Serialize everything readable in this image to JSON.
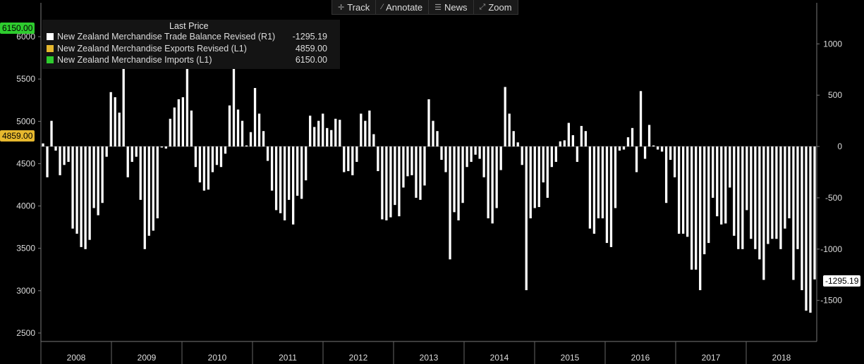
{
  "toolbar": {
    "track_label": "Track",
    "annotate_label": "Annotate",
    "news_label": "News",
    "zoom_label": "Zoom"
  },
  "legend": {
    "header": "Last Price",
    "items": [
      {
        "label": "New Zealand Merchandise Trade Balance Revised  (R1)",
        "value": "-1295.19",
        "color": "#ffffff"
      },
      {
        "label": "New Zealand Merchandise Exports Revised  (L1)",
        "value": "4859.00",
        "color": "#e6b82e"
      },
      {
        "label": "New Zealand Merchandise Imports  (L1)",
        "value": "6150.00",
        "color": "#2ecc2e"
      }
    ]
  },
  "tags": {
    "imports_last": "6150.00",
    "exports_last": "4859.00",
    "balance_last": "-1295.19"
  },
  "chart_data": {
    "type": "bar",
    "x_start": "2008-01",
    "x_end": "2018-12",
    "x_tick_labels": [
      "2008",
      "2009",
      "2010",
      "2011",
      "2012",
      "2013",
      "2014",
      "2015",
      "2016",
      "2017",
      "2018"
    ],
    "left_axis": {
      "ticks": [
        2500,
        3000,
        3500,
        4000,
        4500,
        5000,
        5500,
        6000
      ],
      "range": [
        2400,
        6400
      ]
    },
    "right_axis": {
      "ticks": [
        -1500,
        -1000,
        -500,
        0,
        500,
        1000
      ],
      "range": [
        -1900,
        1400
      ]
    },
    "series": [
      {
        "name": "New Zealand Merchandise Trade Balance Revised  (R1)",
        "type": "bar",
        "axis": "right",
        "values": [
          30,
          -300,
          250,
          -40,
          -280,
          -180,
          -150,
          -800,
          -850,
          -980,
          -1000,
          -910,
          -600,
          -670,
          -550,
          -100,
          530,
          480,
          330,
          830,
          -300,
          -150,
          -100,
          -520,
          -1000,
          -870,
          -820,
          -700,
          -10,
          -20,
          270,
          380,
          460,
          480,
          810,
          350,
          -200,
          -350,
          -430,
          -420,
          -250,
          -180,
          -200,
          -70,
          400,
          830,
          360,
          250,
          10,
          140,
          570,
          320,
          150,
          -140,
          -430,
          -620,
          -650,
          -720,
          -520,
          -760,
          -480,
          -510,
          -330,
          300,
          190,
          250,
          320,
          180,
          160,
          270,
          260,
          -250,
          -240,
          -280,
          -150,
          320,
          250,
          350,
          120,
          -240,
          -710,
          -720,
          -690,
          -570,
          -680,
          -400,
          -290,
          -280,
          -500,
          -520,
          -380,
          460,
          250,
          150,
          -130,
          -250,
          -1100,
          -640,
          -720,
          -550,
          -200,
          -150,
          -80,
          -120,
          -300,
          -700,
          -750,
          -600,
          -230,
          580,
          320,
          150,
          40,
          -180,
          -1400,
          -700,
          -600,
          -590,
          -350,
          -500,
          -200,
          -150,
          50,
          60,
          230,
          110,
          -150,
          200,
          150,
          -800,
          -850,
          -700,
          -700,
          -940,
          -980,
          -600,
          -40,
          -30,
          90,
          180,
          -250,
          540,
          -120,
          210,
          10,
          -30,
          -50,
          -550,
          -130,
          -300,
          -850,
          -850,
          -880,
          -1200,
          -1200,
          -1400,
          -1050,
          -940,
          -500,
          -680,
          -760,
          -750,
          -400,
          -870,
          -1000,
          -1000,
          -620,
          -900,
          -1000,
          -1100,
          -1300,
          -950,
          -900,
          -900,
          -1000,
          -800,
          -700,
          -1300,
          -1000,
          -1400,
          -1600,
          -1620,
          -1295.19
        ],
        "note": "monthly balance (NZD m)"
      },
      {
        "name": "New Zealand Merchandise Exports Revised  (L1)",
        "type": "line",
        "axis": "left",
        "color": "#e6b82e"
      },
      {
        "name": "New Zealand Merchandise Imports  (L1)",
        "type": "line",
        "axis": "left",
        "color": "#2ecc2e"
      }
    ]
  }
}
